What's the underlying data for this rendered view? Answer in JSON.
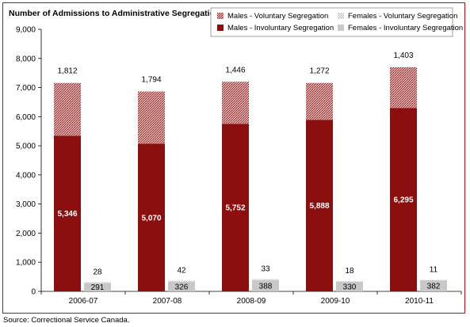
{
  "chart_data": {
    "type": "bar",
    "stacked": true,
    "title": "Number of Admissions to Administrative Segregation",
    "categories": [
      "2006-07",
      "2007-08",
      "2008-09",
      "2009-10",
      "2010-11"
    ],
    "ylim": [
      0,
      9000
    ],
    "yticks": [
      0,
      1000,
      2000,
      3000,
      4000,
      5000,
      6000,
      7000,
      8000,
      9000
    ],
    "ytick_labels": [
      "0",
      "1,000",
      "2,000",
      "3,000",
      "4,000",
      "5,000",
      "6,000",
      "7,000",
      "8,000",
      "9,000"
    ],
    "legend_position": "top-right",
    "grid": false,
    "series": [
      {
        "name": "Males - Involuntary Segregation",
        "stack": "males",
        "values": [
          5346,
          5070,
          5752,
          5888,
          6295
        ],
        "labels": [
          "5,346",
          "5,070",
          "5,752",
          "5,888",
          "6,295"
        ],
        "color": "#8b0f0f"
      },
      {
        "name": "Males - Voluntary Segregation",
        "stack": "males",
        "values": [
          1812,
          1794,
          1446,
          1272,
          1403
        ],
        "labels": [
          "1,812",
          "1,794",
          "1,446",
          "1,272",
          "1,403"
        ],
        "color": "#c98a8a"
      },
      {
        "name": "Females - Involuntary Segregation",
        "stack": "females",
        "values": [
          291,
          326,
          388,
          330,
          382
        ],
        "labels": [
          "291",
          "326",
          "388",
          "330",
          "382"
        ],
        "color": "#c8c8c8"
      },
      {
        "name": "Females - Voluntary Segregation",
        "stack": "females",
        "values": [
          28,
          42,
          33,
          18,
          11
        ],
        "labels": [
          "28",
          "42",
          "33",
          "18",
          "11"
        ],
        "color": "#e4e4e4"
      }
    ]
  },
  "source": "Source:  Correctional Service Canada."
}
